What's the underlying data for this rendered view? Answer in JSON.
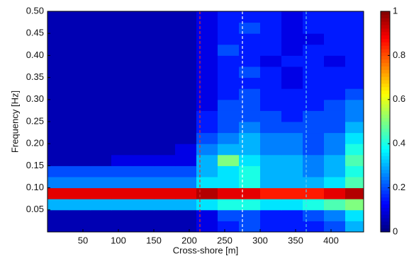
{
  "chart_data": {
    "type": "heatmap",
    "x_label": "Cross-shore [m]",
    "y_label": "Frequency [Hz]",
    "xlim": [
      0,
      446
    ],
    "ylim": [
      0,
      0.5
    ],
    "xticks": [
      50,
      100,
      150,
      200,
      250,
      300,
      350,
      400
    ],
    "yticks": [
      0.05,
      {
        "value": 0.1,
        "label": "0.10"
      },
      0.15,
      {
        "value": 0.2,
        "label": "0.20"
      },
      0.25,
      {
        "value": 0.3,
        "label": "0.30"
      },
      0.35,
      {
        "value": 0.4,
        "label": "0.40"
      },
      0.45,
      {
        "value": 0.5,
        "label": "0.50"
      }
    ],
    "x": [
      15,
      45,
      75,
      105,
      135,
      165,
      195,
      225,
      255,
      285,
      315,
      345,
      375,
      405,
      435
    ],
    "y": [
      0.0125,
      0.0375,
      0.0625,
      0.0875,
      0.1125,
      0.1375,
      0.1625,
      0.1875,
      0.2125,
      0.2375,
      0.2625,
      0.2875,
      0.3125,
      0.3375,
      0.3625,
      0.3875,
      0.4125,
      0.4375,
      0.4625,
      0.4875
    ],
    "z": [
      [
        0.05,
        0.05,
        0.05,
        0.05,
        0.05,
        0.05,
        0.05,
        0.1,
        0.15,
        0.2,
        0.15,
        0.15,
        0.15,
        0.2,
        0.3
      ],
      [
        0.05,
        0.05,
        0.05,
        0.05,
        0.05,
        0.05,
        0.05,
        0.1,
        0.2,
        0.2,
        0.15,
        0.15,
        0.2,
        0.25,
        0.35
      ],
      [
        0.3,
        0.3,
        0.3,
        0.3,
        0.3,
        0.3,
        0.3,
        0.35,
        0.4,
        0.4,
        0.35,
        0.35,
        0.4,
        0.45,
        0.5
      ],
      [
        0.9,
        0.9,
        0.9,
        0.9,
        0.9,
        0.9,
        0.9,
        0.95,
        0.9,
        0.9,
        0.85,
        0.85,
        0.85,
        0.9,
        0.95
      ],
      [
        0.25,
        0.25,
        0.25,
        0.25,
        0.25,
        0.25,
        0.25,
        0.35,
        0.35,
        0.4,
        0.3,
        0.3,
        0.3,
        0.35,
        0.45
      ],
      [
        0.2,
        0.2,
        0.2,
        0.2,
        0.2,
        0.2,
        0.2,
        0.3,
        0.35,
        0.4,
        0.3,
        0.3,
        0.25,
        0.3,
        0.4
      ],
      [
        0.05,
        0.05,
        0.05,
        0.1,
        0.1,
        0.1,
        0.1,
        0.3,
        0.5,
        0.35,
        0.3,
        0.3,
        0.25,
        0.3,
        0.45
      ],
      [
        0.05,
        0.05,
        0.05,
        0.05,
        0.05,
        0.05,
        0.1,
        0.25,
        0.3,
        0.3,
        0.25,
        0.25,
        0.2,
        0.25,
        0.4
      ],
      [
        0.05,
        0.05,
        0.05,
        0.05,
        0.05,
        0.05,
        0.05,
        0.2,
        0.25,
        0.3,
        0.25,
        0.25,
        0.2,
        0.25,
        0.35
      ],
      [
        0.05,
        0.05,
        0.05,
        0.05,
        0.05,
        0.05,
        0.05,
        0.15,
        0.2,
        0.25,
        0.2,
        0.2,
        0.2,
        0.2,
        0.3
      ],
      [
        0.05,
        0.05,
        0.05,
        0.05,
        0.05,
        0.05,
        0.05,
        0.15,
        0.2,
        0.2,
        0.2,
        0.15,
        0.2,
        0.2,
        0.25
      ],
      [
        0.05,
        0.05,
        0.05,
        0.05,
        0.05,
        0.05,
        0.05,
        0.1,
        0.2,
        0.2,
        0.15,
        0.15,
        0.15,
        0.2,
        0.25
      ],
      [
        0.05,
        0.05,
        0.05,
        0.05,
        0.05,
        0.05,
        0.05,
        0.1,
        0.15,
        0.2,
        0.15,
        0.15,
        0.15,
        0.15,
        0.2
      ],
      [
        0.05,
        0.05,
        0.05,
        0.05,
        0.05,
        0.05,
        0.05,
        0.1,
        0.15,
        0.15,
        0.15,
        0.1,
        0.15,
        0.15,
        0.15
      ],
      [
        0.05,
        0.05,
        0.05,
        0.05,
        0.05,
        0.05,
        0.05,
        0.1,
        0.15,
        0.2,
        0.15,
        0.1,
        0.15,
        0.15,
        0.15
      ],
      [
        0.05,
        0.05,
        0.05,
        0.05,
        0.05,
        0.05,
        0.05,
        0.1,
        0.15,
        0.15,
        0.1,
        0.15,
        0.15,
        0.1,
        0.15
      ],
      [
        0.05,
        0.05,
        0.05,
        0.05,
        0.05,
        0.05,
        0.05,
        0.1,
        0.2,
        0.15,
        0.15,
        0.1,
        0.15,
        0.15,
        0.15
      ],
      [
        0.05,
        0.05,
        0.05,
        0.05,
        0.05,
        0.05,
        0.05,
        0.1,
        0.15,
        0.15,
        0.15,
        0.1,
        0.1,
        0.15,
        0.15
      ],
      [
        0.05,
        0.05,
        0.05,
        0.05,
        0.05,
        0.05,
        0.05,
        0.1,
        0.15,
        0.2,
        0.15,
        0.1,
        0.15,
        0.15,
        0.15
      ],
      [
        0.05,
        0.05,
        0.05,
        0.05,
        0.05,
        0.05,
        0.05,
        0.1,
        0.15,
        0.15,
        0.15,
        0.1,
        0.15,
        0.15,
        0.15
      ]
    ],
    "clim": [
      0,
      1
    ],
    "cticks": [
      0,
      0.2,
      0.4,
      0.6,
      0.8,
      1
    ],
    "vlines": [
      {
        "value": 215,
        "color": "#e03030"
      },
      {
        "value": 275,
        "color": "#ffffff"
      },
      {
        "value": 365,
        "color": "#60c8f0"
      }
    ]
  }
}
